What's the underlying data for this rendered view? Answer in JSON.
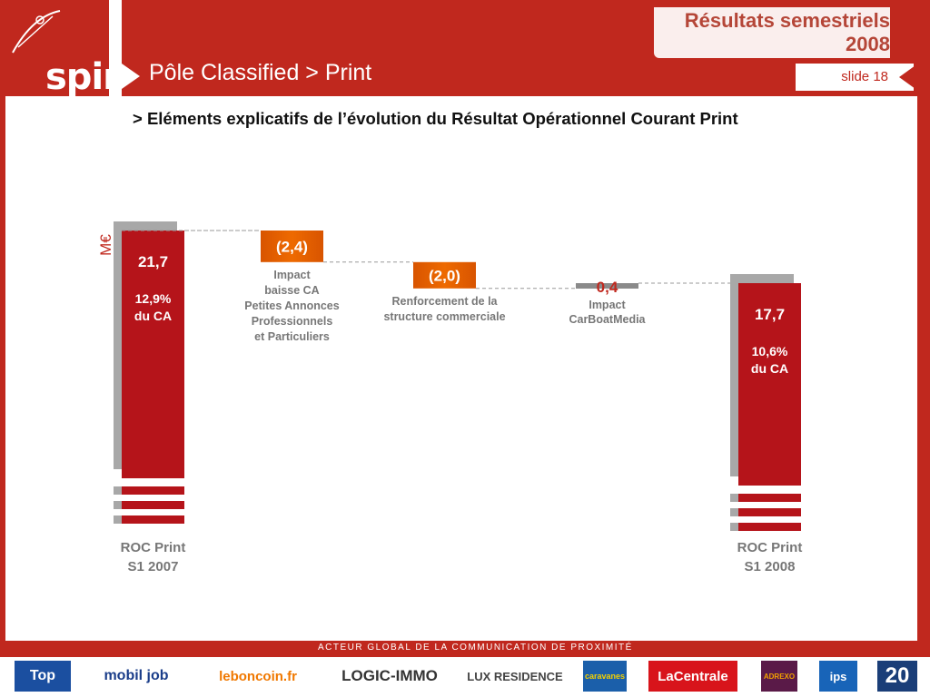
{
  "header": {
    "logo": "spir",
    "section_title": "Pôle Classified > Print",
    "brand_line1": "Résultats semestriels",
    "brand_line2": "2008",
    "slide_label": "slide 18",
    "subtitle": "> Eléments explicatifs de l’évolution du Résultat Opérationnel Courant Print",
    "colors": {
      "brand_red": "#c0281e",
      "title_red": "#b54638"
    }
  },
  "footer": {
    "tagline": "ACTEUR GLOBAL DE LA COMMUNICATION DE PROXIMITÉ",
    "logos": [
      "Top",
      "mobil job",
      "leboncoin.fr",
      "LOGIC-IMMO",
      "LUX RESIDENCE",
      "caravanes",
      "LaCentrale",
      "ADREXO",
      "ips",
      "20"
    ]
  },
  "chart_data": {
    "type": "waterfall",
    "unit_label": "M€",
    "steps": [
      {
        "kind": "total",
        "label": "ROC Print\nS1 2007",
        "value": 21.7,
        "value_label": "21,7",
        "note": "12,9%\ndu CA"
      },
      {
        "kind": "delta",
        "label": "Impact\nbaisse CA\nPetites Annonces\nProfessionnels\net Particuliers",
        "value": -2.4,
        "value_label": "(2,4)"
      },
      {
        "kind": "delta",
        "label": "Renforcement de la\nstructure commerciale",
        "value": -2.0,
        "value_label": "(2,0)"
      },
      {
        "kind": "delta",
        "label": "Impact\nCarBoatMedia",
        "value": 0.4,
        "value_label": "0,4"
      },
      {
        "kind": "total",
        "label": "ROC Print\nS1 2008",
        "value": 17.7,
        "value_label": "17,7",
        "note": "10,6%\ndu CA"
      }
    ],
    "colors": {
      "total": "#b5141a",
      "delta_orange": "#ee6a00",
      "delta_grey": "#8a8a8a",
      "shadow": "#a8a8a8",
      "value_red": "#c0281e"
    }
  }
}
